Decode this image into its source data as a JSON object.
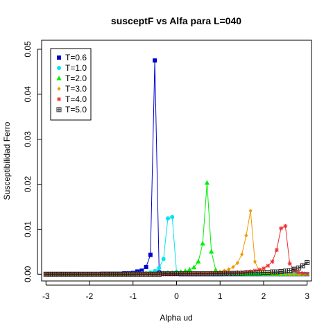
{
  "chart_data": {
    "type": "line",
    "title": "susceptF vs Alfa para L=040",
    "xlabel": "Alpha ud",
    "ylabel": "Susceptibilidad Ferro",
    "xlim": [
      -3.1,
      3.1
    ],
    "ylim": [
      -0.0015,
      0.052
    ],
    "x_ticks": [
      -3,
      -2,
      -1,
      0,
      1,
      2,
      3
    ],
    "y_ticks": [
      0.0,
      0.01,
      0.02,
      0.03,
      0.04,
      0.05
    ],
    "y_tick_labels": [
      "0.00",
      "0.01",
      "0.02",
      "0.03",
      "0.04",
      "0.05"
    ],
    "grid": false,
    "legend_position": "top-left",
    "series": [
      {
        "name": "T=0.6",
        "color": "#0000cd",
        "marker": "square",
        "x": [
          -3.0,
          -2.9,
          -2.8,
          -2.7,
          -2.6,
          -2.5,
          -2.4,
          -2.3,
          -2.2,
          -2.1,
          -2.0,
          -1.9,
          -1.8,
          -1.7,
          -1.6,
          -1.5,
          -1.4,
          -1.3,
          -1.2,
          -1.1,
          -1.0,
          -0.9,
          -0.8,
          -0.7,
          -0.6,
          -0.5,
          -0.4,
          -0.3,
          -0.2,
          -0.1,
          0.0,
          0.1,
          0.2,
          0.3,
          0.4,
          0.5,
          0.6,
          0.7,
          0.8,
          0.9,
          1.0,
          1.1,
          1.2,
          1.3,
          1.4,
          1.5,
          1.6,
          1.7,
          1.8,
          1.9,
          2.0,
          2.1,
          2.2,
          2.3,
          2.4,
          2.5,
          2.6,
          2.7,
          2.8,
          2.9,
          3.0
        ],
        "y": [
          0.0,
          0.0,
          0.0,
          0.0,
          0.0,
          0.0,
          0.0,
          0.0,
          0.0,
          0.0,
          0.0,
          0.0,
          0.0,
          0.0001,
          0.0001,
          0.0001,
          0.0001,
          0.0001,
          0.0002,
          0.0002,
          0.0003,
          0.0006,
          0.0008,
          0.0016,
          0.0043,
          0.0475,
          0.0004,
          0.0001,
          0.0001,
          0.0001,
          0.0001,
          0.0,
          0.0,
          0.0,
          0.0,
          0.0,
          0.0,
          0.0,
          0.0,
          0.0,
          0.0,
          0.0,
          0.0,
          0.0,
          0.0,
          0.0,
          0.0,
          0.0,
          0.0,
          0.0,
          0.0,
          0.0,
          0.0,
          0.0,
          0.0,
          0.0,
          0.0,
          0.0,
          0.0,
          0.0,
          0.0
        ]
      },
      {
        "name": "T=1.0",
        "color": "#00e5ee",
        "marker": "circle",
        "x": [
          -3.0,
          -2.9,
          -2.8,
          -2.7,
          -2.6,
          -2.5,
          -2.4,
          -2.3,
          -2.2,
          -2.1,
          -2.0,
          -1.9,
          -1.8,
          -1.7,
          -1.6,
          -1.5,
          -1.4,
          -1.3,
          -1.2,
          -1.1,
          -1.0,
          -0.9,
          -0.8,
          -0.7,
          -0.6,
          -0.5,
          -0.4,
          -0.3,
          -0.2,
          -0.1,
          0.0,
          0.1,
          0.2,
          0.3,
          0.4,
          0.5,
          0.6,
          0.7,
          0.8,
          0.9,
          1.0,
          1.1,
          1.2,
          1.3,
          1.4,
          1.5,
          1.6,
          1.7,
          1.8,
          1.9,
          2.0,
          2.1,
          2.2,
          2.3,
          2.4,
          2.5,
          2.6,
          2.7,
          2.8,
          2.9,
          3.0
        ],
        "y": [
          0.0,
          0.0,
          0.0,
          0.0,
          0.0,
          0.0,
          0.0,
          0.0,
          0.0,
          0.0,
          0.0,
          0.0,
          0.0,
          0.0,
          0.0,
          0.0,
          0.0,
          0.0,
          0.0,
          0.0001,
          0.0001,
          0.0001,
          0.0002,
          0.0002,
          0.0004,
          0.0007,
          0.0014,
          0.0034,
          0.0124,
          0.0127,
          0.0005,
          0.0002,
          0.0001,
          0.0001,
          0.0001,
          0.0,
          0.0,
          0.0,
          0.0,
          0.0,
          0.0,
          0.0,
          0.0,
          0.0,
          0.0,
          0.0,
          0.0,
          0.0,
          0.0,
          0.0,
          0.0,
          0.0,
          0.0,
          0.0,
          0.0,
          0.0,
          0.0,
          0.0,
          0.0,
          0.0,
          0.0
        ]
      },
      {
        "name": "T=2.0",
        "color": "#00ee00",
        "marker": "triangle",
        "x": [
          -3.0,
          -2.9,
          -2.8,
          -2.7,
          -2.6,
          -2.5,
          -2.4,
          -2.3,
          -2.2,
          -2.1,
          -2.0,
          -1.9,
          -1.8,
          -1.7,
          -1.6,
          -1.5,
          -1.4,
          -1.3,
          -1.2,
          -1.1,
          -1.0,
          -0.9,
          -0.8,
          -0.7,
          -0.6,
          -0.5,
          -0.4,
          -0.3,
          -0.2,
          -0.1,
          0.0,
          0.1,
          0.2,
          0.3,
          0.4,
          0.5,
          0.6,
          0.7,
          0.8,
          0.9,
          1.0,
          1.1,
          1.2,
          1.3,
          1.4,
          1.5,
          1.6,
          1.7,
          1.8,
          1.9,
          2.0,
          2.1,
          2.2,
          2.3,
          2.4,
          2.5,
          2.6,
          2.7,
          2.8,
          2.9,
          3.0
        ],
        "y": [
          0.0,
          0.0,
          0.0,
          0.0,
          0.0,
          0.0,
          0.0,
          0.0,
          0.0,
          0.0,
          0.0,
          0.0,
          0.0,
          0.0,
          0.0,
          0.0,
          0.0,
          0.0,
          0.0,
          0.0,
          0.0,
          0.0001,
          0.0001,
          0.0001,
          0.0001,
          0.0001,
          0.0002,
          0.0002,
          0.0003,
          0.0003,
          0.0004,
          0.0005,
          0.0007,
          0.001,
          0.0015,
          0.0028,
          0.0068,
          0.0203,
          0.005,
          0.0009,
          0.0004,
          0.0002,
          0.0001,
          0.0001,
          0.0001,
          0.0,
          0.0,
          0.0,
          0.0,
          0.0,
          0.0,
          0.0,
          0.0,
          0.0,
          0.0,
          0.0,
          0.0,
          0.0,
          0.0,
          0.0,
          0.0
        ]
      },
      {
        "name": "T=3.0",
        "color": "#ee9a00",
        "marker": "diamond",
        "x": [
          -3.0,
          -2.9,
          -2.8,
          -2.7,
          -2.6,
          -2.5,
          -2.4,
          -2.3,
          -2.2,
          -2.1,
          -2.0,
          -1.9,
          -1.8,
          -1.7,
          -1.6,
          -1.5,
          -1.4,
          -1.3,
          -1.2,
          -1.1,
          -1.0,
          -0.9,
          -0.8,
          -0.7,
          -0.6,
          -0.5,
          -0.4,
          -0.3,
          -0.2,
          -0.1,
          0.0,
          0.1,
          0.2,
          0.3,
          0.4,
          0.5,
          0.6,
          0.7,
          0.8,
          0.9,
          1.0,
          1.1,
          1.2,
          1.3,
          1.4,
          1.5,
          1.6,
          1.7,
          1.8,
          1.9,
          2.0,
          2.1,
          2.2,
          2.3,
          2.4,
          2.5,
          2.6,
          2.7,
          2.8,
          2.9,
          3.0
        ],
        "y": [
          0.0,
          0.0,
          0.0,
          0.0,
          0.0,
          0.0,
          0.0,
          0.0,
          0.0,
          0.0,
          0.0,
          0.0,
          0.0,
          0.0,
          0.0,
          0.0,
          0.0,
          0.0,
          0.0,
          0.0,
          0.0,
          0.0,
          0.0,
          0.0,
          0.0,
          0.0001,
          0.0001,
          0.0001,
          0.0001,
          0.0001,
          0.0001,
          0.0001,
          0.0001,
          0.0002,
          0.0002,
          0.0002,
          0.0003,
          0.0003,
          0.0004,
          0.0005,
          0.0006,
          0.0008,
          0.0011,
          0.0016,
          0.0025,
          0.0044,
          0.0086,
          0.0141,
          0.0028,
          0.0008,
          0.0004,
          0.0002,
          0.0001,
          0.0001,
          0.0001,
          0.0001,
          0.0,
          0.0,
          0.0,
          0.0,
          0.0
        ]
      },
      {
        "name": "T=4.0",
        "color": "#ee2c2c",
        "marker": "star",
        "x": [
          -3.0,
          -2.9,
          -2.8,
          -2.7,
          -2.6,
          -2.5,
          -2.4,
          -2.3,
          -2.2,
          -2.1,
          -2.0,
          -1.9,
          -1.8,
          -1.7,
          -1.6,
          -1.5,
          -1.4,
          -1.3,
          -1.2,
          -1.1,
          -1.0,
          -0.9,
          -0.8,
          -0.7,
          -0.6,
          -0.5,
          -0.4,
          -0.3,
          -0.2,
          -0.1,
          0.0,
          0.1,
          0.2,
          0.3,
          0.4,
          0.5,
          0.6,
          0.7,
          0.8,
          0.9,
          1.0,
          1.1,
          1.2,
          1.3,
          1.4,
          1.5,
          1.6,
          1.7,
          1.8,
          1.9,
          2.0,
          2.1,
          2.2,
          2.3,
          2.4,
          2.5,
          2.6,
          2.7,
          2.8,
          2.9,
          3.0
        ],
        "y": [
          0.0,
          0.0,
          0.0,
          0.0,
          0.0,
          0.0,
          0.0,
          0.0,
          0.0,
          0.0,
          0.0,
          0.0,
          0.0,
          0.0,
          0.0,
          0.0,
          0.0,
          0.0,
          0.0,
          0.0,
          0.0,
          0.0,
          0.0,
          0.0,
          0.0,
          0.0,
          0.0,
          0.0,
          0.0,
          0.0,
          0.0001,
          0.0001,
          0.0001,
          0.0001,
          0.0001,
          0.0001,
          0.0001,
          0.0001,
          0.0002,
          0.0002,
          0.0002,
          0.0002,
          0.0003,
          0.0003,
          0.0004,
          0.0004,
          0.0005,
          0.0006,
          0.0008,
          0.001,
          0.0013,
          0.0019,
          0.0028,
          0.0054,
          0.0102,
          0.0107,
          0.0024,
          0.0009,
          0.0004,
          0.0002,
          0.0001
        ]
      },
      {
        "name": "T=5.0",
        "color": "#222222",
        "marker": "squareplus",
        "x": [
          -3.0,
          -2.9,
          -2.8,
          -2.7,
          -2.6,
          -2.5,
          -2.4,
          -2.3,
          -2.2,
          -2.1,
          -2.0,
          -1.9,
          -1.8,
          -1.7,
          -1.6,
          -1.5,
          -1.4,
          -1.3,
          -1.2,
          -1.1,
          -1.0,
          -0.9,
          -0.8,
          -0.7,
          -0.6,
          -0.5,
          -0.4,
          -0.3,
          -0.2,
          -0.1,
          0.0,
          0.1,
          0.2,
          0.3,
          0.4,
          0.5,
          0.6,
          0.7,
          0.8,
          0.9,
          1.0,
          1.1,
          1.2,
          1.3,
          1.4,
          1.5,
          1.6,
          1.7,
          1.8,
          1.9,
          2.0,
          2.1,
          2.2,
          2.3,
          2.4,
          2.5,
          2.6,
          2.7,
          2.8,
          2.9,
          3.0
        ],
        "y": [
          0.0,
          0.0,
          0.0,
          0.0,
          0.0,
          0.0,
          0.0,
          0.0,
          0.0,
          0.0,
          0.0,
          0.0,
          0.0,
          0.0,
          0.0,
          0.0,
          0.0,
          0.0,
          0.0,
          0.0,
          0.0,
          0.0,
          0.0,
          0.0,
          0.0,
          0.0,
          0.0,
          0.0001,
          0.0001,
          0.0001,
          0.0001,
          0.0001,
          0.0001,
          0.0001,
          0.0001,
          0.0001,
          0.0001,
          0.0001,
          0.0001,
          0.0001,
          0.0001,
          0.0002,
          0.0002,
          0.0002,
          0.0002,
          0.0002,
          0.0003,
          0.0003,
          0.0003,
          0.0003,
          0.0004,
          0.0004,
          0.0005,
          0.0005,
          0.0006,
          0.0007,
          0.0008,
          0.0011,
          0.0014,
          0.0019,
          0.0026
        ]
      }
    ]
  }
}
